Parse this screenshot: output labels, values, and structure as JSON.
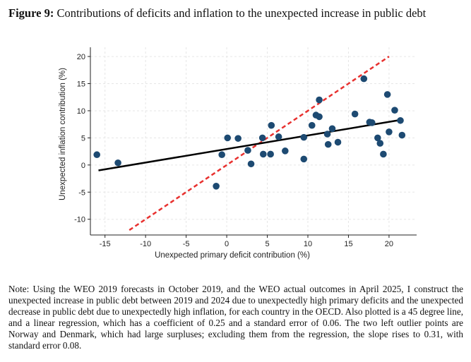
{
  "title": {
    "label": "Figure 9:",
    "text": "Contributions of deficits and inflation to the unexpected increase in public debt"
  },
  "chart_data": {
    "type": "scatter",
    "xlabel": "Unexpected primary deficit contribution (%)",
    "ylabel": "Unexpected inflation contribution (%)",
    "xlim": [
      -16.8,
      23.4
    ],
    "ylim": [
      -12.9,
      21.7
    ],
    "xticks": [
      -15,
      -10,
      -5,
      0,
      5,
      10,
      15,
      20
    ],
    "yticks": [
      -10,
      -5,
      0,
      5,
      10,
      15,
      20
    ],
    "grid": true,
    "points": [
      [
        -16.0,
        1.9
      ],
      [
        -13.4,
        0.4
      ],
      [
        -1.3,
        -3.9
      ],
      [
        -0.6,
        1.9
      ],
      [
        0.1,
        5.0
      ],
      [
        1.4,
        4.9
      ],
      [
        2.6,
        2.7
      ],
      [
        3.0,
        0.2
      ],
      [
        4.4,
        5.0
      ],
      [
        4.5,
        2.0
      ],
      [
        5.4,
        2.0
      ],
      [
        5.5,
        7.3
      ],
      [
        6.4,
        5.2
      ],
      [
        7.2,
        2.6
      ],
      [
        9.5,
        5.1
      ],
      [
        9.5,
        1.1
      ],
      [
        10.5,
        7.3
      ],
      [
        11.0,
        9.2
      ],
      [
        11.4,
        8.9
      ],
      [
        11.4,
        12.0
      ],
      [
        12.4,
        5.7
      ],
      [
        12.5,
        3.8
      ],
      [
        13.0,
        6.7
      ],
      [
        13.7,
        4.2
      ],
      [
        15.8,
        9.4
      ],
      [
        16.9,
        15.9
      ],
      [
        17.6,
        7.9
      ],
      [
        17.9,
        7.8
      ],
      [
        18.6,
        5.0
      ],
      [
        18.9,
        4.0
      ],
      [
        19.3,
        2.0
      ],
      [
        19.8,
        13.0
      ],
      [
        20.0,
        6.1
      ],
      [
        20.7,
        10.1
      ],
      [
        21.4,
        8.2
      ],
      [
        21.6,
        5.5
      ]
    ],
    "regression": {
      "slope": 0.25,
      "intercept": 2.95,
      "x_range": [
        -15.8,
        21.4
      ],
      "color": "#000000"
    },
    "diagonal_45": {
      "x_range": [
        -12,
        20
      ],
      "color": "#e8312f"
    },
    "point_color": "#1d4a72"
  },
  "note": "Note: Using the WEO 2019 forecasts in October 2019, and the WEO actual outcomes in April 2025, I construct the unexpected increase in public debt between 2019 and 2024 due to unexpectedly high primary deficits and the unexpected decrease in public debt due to unexpectedly high inflation, for each country in the OECD. Also plotted is a 45 degree line, and a linear regression, which has a coefficient of 0.25 and a standard error of 0.06. The two left outlier points are Norway and Denmark, which had large surpluses; excluding them from the regression, the slope rises to 0.31, with standard error 0.08."
}
